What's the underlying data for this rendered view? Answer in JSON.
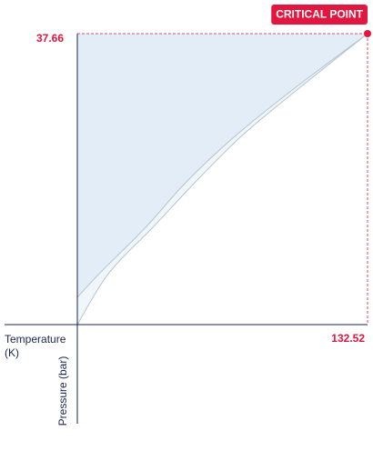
{
  "chart_data": {
    "type": "line",
    "x_label": "Temperature (K)",
    "y_label": "Pressure (bar)",
    "xlim": [
      0,
      132.52
    ],
    "ylim": [
      0,
      37.66
    ],
    "xticks": [
      132.52
    ],
    "yticks": [
      37.66
    ],
    "critical_point": {
      "label": "CRITICAL POINT",
      "x": 132.52,
      "y": 37.66,
      "color": "#e2163f"
    },
    "series": [
      {
        "color": "#b5c4d0",
        "fill": "#e3edf8",
        "x": [
          0,
          10.4,
          31.2,
          49.8,
          71.9,
          97.6,
          132.52
        ],
        "values": [
          3.53,
          6.71,
          12.59,
          18.48,
          24.36,
          30.25,
          37.66
        ]
      },
      {
        "color": "#b5c4d0",
        "fill": "#f1f6fb",
        "x": [
          0,
          14.5,
          34.5,
          54.0,
          74.8,
          99.7,
          132.52
        ],
        "values": [
          0,
          6.71,
          12.59,
          18.48,
          24.36,
          30.25,
          37.66
        ]
      }
    ]
  }
}
